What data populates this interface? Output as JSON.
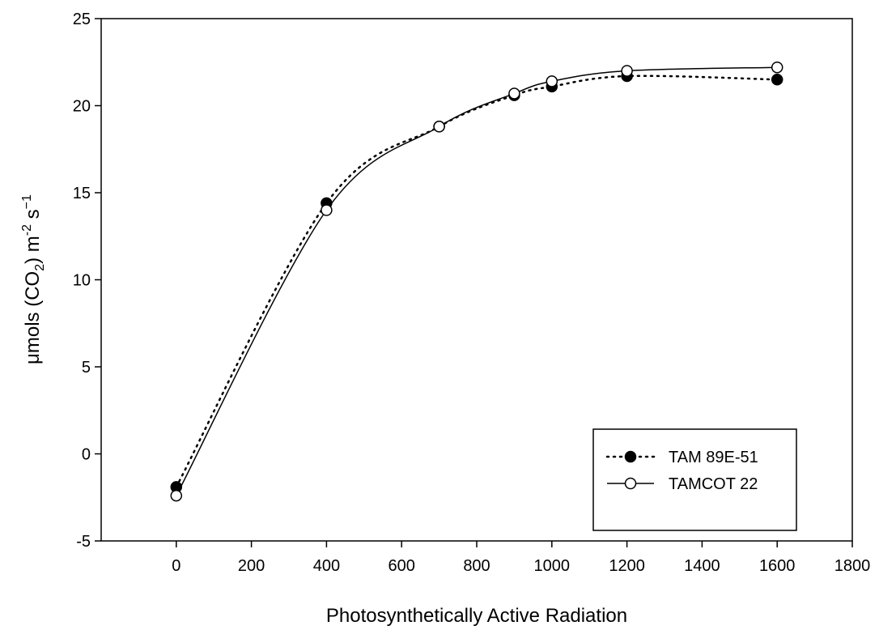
{
  "chart_data": {
    "type": "line",
    "xlabel": "Photosynthetically Active Radiation",
    "ylabel": {
      "prefix": "μmols (CO",
      "sub": "2",
      "mid": ") m",
      "sup1": "-2",
      "space": " s",
      "sup2": "−1"
    },
    "xlim": [
      -200,
      1800
    ],
    "ylim": [
      -5,
      25
    ],
    "xticks": [
      0,
      200,
      400,
      600,
      800,
      1000,
      1200,
      1400,
      1600,
      1800
    ],
    "yticks": [
      -5,
      0,
      5,
      10,
      15,
      20,
      25
    ],
    "grid": false,
    "legend_position": "bottom-right",
    "series": [
      {
        "name": "TAM 89E-51",
        "marker": "filled-circle",
        "line": "dotted",
        "x": [
          0,
          400,
          700,
          900,
          1000,
          1200,
          1600
        ],
        "y": [
          -1.9,
          14.4,
          18.8,
          20.6,
          21.1,
          21.7,
          21.5
        ]
      },
      {
        "name": "TAMCOT 22",
        "marker": "open-circle",
        "line": "solid",
        "x": [
          0,
          400,
          700,
          900,
          1000,
          1200,
          1600
        ],
        "y": [
          -2.4,
          14.0,
          18.8,
          20.7,
          21.4,
          22.0,
          22.2
        ]
      }
    ]
  }
}
